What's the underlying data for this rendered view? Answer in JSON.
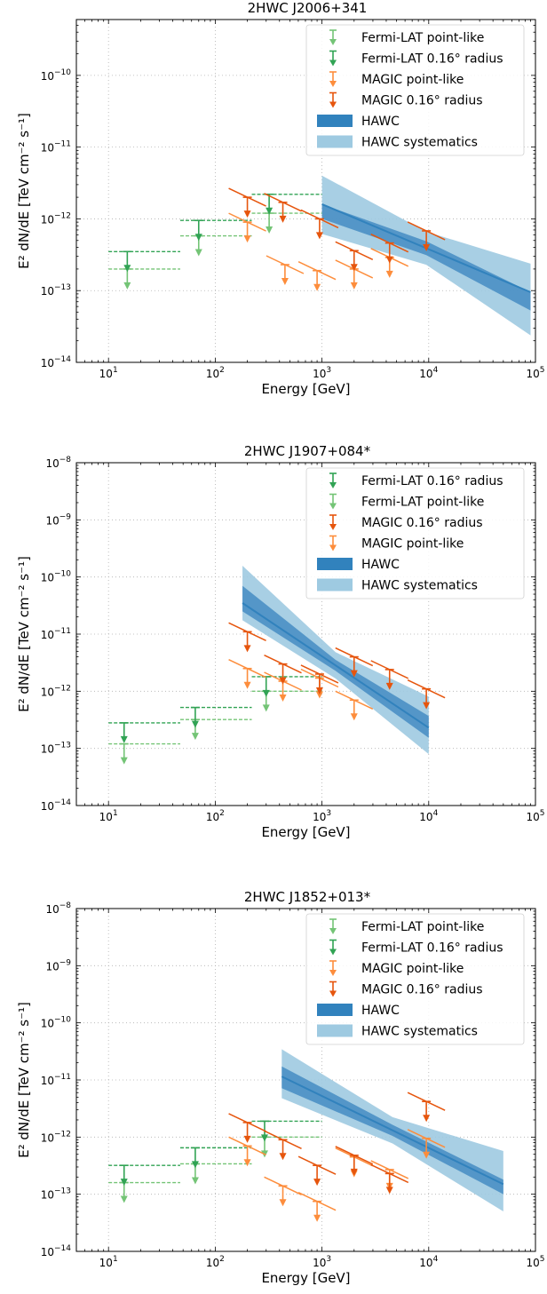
{
  "colors": {
    "fermi_point": "#74c476",
    "fermi_radius": "#31a354",
    "magic_point": "#fd8d3c",
    "magic_radius": "#e6550d",
    "hawc": "#3182bd",
    "hawc_band": "#4a8fc4",
    "hawc_sys": "#9ecae1"
  },
  "chart_data": [
    {
      "type": "line",
      "title": "2HWC J2006+341",
      "xlabel": "Energy [GeV]",
      "ylabel": "E² dN/dE [TeV cm⁻² s⁻¹]",
      "xscale": "log",
      "yscale": "log",
      "xlim": [
        5,
        100000
      ],
      "ylim": [
        1e-14,
        6e-10
      ],
      "xticks": [
        "10^1",
        "10^2",
        "10^3",
        "10^4",
        "10^5"
      ],
      "yticks": [
        "10^-14",
        "10^-13",
        "10^-12",
        "10^-11",
        "10^-10"
      ],
      "grid": true,
      "legend_loc": "top-right",
      "legend": [
        "Fermi-LAT point-like",
        "Fermi-LAT 0.16° radius",
        "MAGIC point-like",
        "MAGIC 0.16° radius",
        "HAWC",
        "HAWC systematics"
      ],
      "fermi_point": [
        {
          "x": 15,
          "x0": 10,
          "x1": 47,
          "y": 2e-13
        },
        {
          "x": 70,
          "x0": 47,
          "x1": 220,
          "y": 5.8e-13
        },
        {
          "x": 320,
          "x0": 220,
          "x1": 1000,
          "y": 1.2e-12
        }
      ],
      "fermi_radius": [
        {
          "x": 15,
          "x0": 10,
          "x1": 47,
          "y": 3.5e-13
        },
        {
          "x": 70,
          "x0": 47,
          "x1": 220,
          "y": 9.5e-13
        },
        {
          "x": 320,
          "x0": 220,
          "x1": 1000,
          "y": 2.2e-12
        }
      ],
      "magic_point": [
        {
          "x": 200,
          "y": 9e-13
        },
        {
          "x": 450,
          "y": 2.3e-13
        },
        {
          "x": 900,
          "y": 1.9e-13
        },
        {
          "x": 2000,
          "y": 2e-13
        },
        {
          "x": 4300,
          "y": 2.9e-13
        }
      ],
      "magic_radius": [
        {
          "x": 200,
          "y": 2e-12
        },
        {
          "x": 430,
          "y": 1.7e-12
        },
        {
          "x": 950,
          "y": 1e-12
        },
        {
          "x": 2000,
          "y": 3.6e-13
        },
        {
          "x": 4300,
          "y": 4.6e-13
        },
        {
          "x": 9500,
          "y": 6.8e-13
        }
      ],
      "hawc": {
        "e0": 1000,
        "e1": 90000,
        "f0": 1.6e-12,
        "f1": 9.5e-14,
        "stat": [
          [
            1.0,
            1.0
          ],
          [
            1.6,
            1.8
          ]
        ],
        "sys": [
          [
            2.5,
            2.5
          ],
          [
            2.6,
            4.0
          ]
        ]
      }
    },
    {
      "type": "line",
      "title": "2HWC J1907+084*",
      "xlabel": "Energy [GeV]",
      "ylabel": "E² dN/dE [TeV cm⁻² s⁻¹]",
      "xscale": "log",
      "yscale": "log",
      "xlim": [
        5,
        100000
      ],
      "ylim": [
        1e-14,
        1e-08
      ],
      "xticks": [
        "10^1",
        "10^2",
        "10^3",
        "10^4",
        "10^5"
      ],
      "yticks": [
        "10^-14",
        "10^-13",
        "10^-12",
        "10^-11",
        "10^-10",
        "10^-9",
        "10^-8"
      ],
      "grid": true,
      "legend_loc": "top-right",
      "legend": [
        "Fermi-LAT 0.16° radius",
        "Fermi-LAT point-like",
        "MAGIC 0.16° radius",
        "MAGIC point-like",
        "HAWC",
        "HAWC systematics"
      ],
      "fermi_point": [
        {
          "x": 14,
          "x0": 10,
          "x1": 47,
          "y": 1.2e-13
        },
        {
          "x": 65,
          "x0": 47,
          "x1": 220,
          "y": 3.2e-13
        },
        {
          "x": 300,
          "x0": 220,
          "x1": 1000,
          "y": 1e-12
        }
      ],
      "fermi_radius": [
        {
          "x": 14,
          "x0": 10,
          "x1": 47,
          "y": 2.8e-13
        },
        {
          "x": 65,
          "x0": 47,
          "x1": 220,
          "y": 5.2e-13
        },
        {
          "x": 300,
          "x0": 220,
          "x1": 1000,
          "y": 1.8e-12
        }
      ],
      "magic_point": [
        {
          "x": 200,
          "y": 2.5e-12
        },
        {
          "x": 430,
          "y": 1.5e-12
        },
        {
          "x": 950,
          "y": 1.7e-12
        },
        {
          "x": 2000,
          "y": 7e-13
        }
      ],
      "magic_radius": [
        {
          "x": 200,
          "y": 1.1e-11
        },
        {
          "x": 430,
          "y": 3e-12
        },
        {
          "x": 950,
          "y": 2e-12
        },
        {
          "x": 2000,
          "y": 4e-12
        },
        {
          "x": 4300,
          "y": 2.4e-12
        },
        {
          "x": 9500,
          "y": 1.1e-12
        }
      ],
      "hawc": {
        "e0": 180,
        "e1": 10000,
        "f0": 3.5e-11,
        "f1": 2.3e-13,
        "stat": [
          [
            2.0,
            1.6
          ],
          [
            1.4,
            1.5
          ]
        ],
        "sys": [
          [
            4.5,
            3.5
          ],
          [
            2.0,
            2.9
          ]
        ]
      }
    },
    {
      "type": "line",
      "title": "2HWC J1852+013*",
      "xlabel": "Energy [GeV]",
      "ylabel": "E² dN/dE [TeV cm⁻² s⁻¹]",
      "xscale": "log",
      "yscale": "log",
      "xlim": [
        5,
        100000
      ],
      "ylim": [
        1e-14,
        1e-08
      ],
      "xticks": [
        "10^1",
        "10^2",
        "10^3",
        "10^4",
        "10^5"
      ],
      "yticks": [
        "10^-14",
        "10^-13",
        "10^-12",
        "10^-11",
        "10^-10",
        "10^-9",
        "10^-8"
      ],
      "grid": true,
      "legend_loc": "top-right",
      "legend": [
        "Fermi-LAT point-like",
        "Fermi-LAT 0.16° radius",
        "MAGIC point-like",
        "MAGIC 0.16° radius",
        "HAWC",
        "HAWC systematics"
      ],
      "fermi_point": [
        {
          "x": 14,
          "x0": 10,
          "x1": 47,
          "y": 1.6e-13
        },
        {
          "x": 65,
          "x0": 47,
          "x1": 220,
          "y": 3.4e-13
        },
        {
          "x": 290,
          "x0": 220,
          "x1": 1000,
          "y": 1e-12
        }
      ],
      "fermi_radius": [
        {
          "x": 14,
          "x0": 10,
          "x1": 47,
          "y": 3.2e-13
        },
        {
          "x": 65,
          "x0": 47,
          "x1": 220,
          "y": 6.5e-13
        },
        {
          "x": 290,
          "x0": 220,
          "x1": 1000,
          "y": 1.9e-12
        }
      ],
      "magic_point": [
        {
          "x": 200,
          "y": 7e-13
        },
        {
          "x": 430,
          "y": 1.4e-13
        },
        {
          "x": 900,
          "y": 7.5e-14
        },
        {
          "x": 2000,
          "y": 4.5e-13
        },
        {
          "x": 4300,
          "y": 2.7e-13
        },
        {
          "x": 9500,
          "y": 9.5e-13
        }
      ],
      "magic_radius": [
        {
          "x": 200,
          "y": 1.8e-12
        },
        {
          "x": 430,
          "y": 9e-13
        },
        {
          "x": 900,
          "y": 3.2e-13
        },
        {
          "x": 2000,
          "y": 4.8e-13
        },
        {
          "x": 4300,
          "y": 2.3e-13
        },
        {
          "x": 9500,
          "y": 4.2e-12
        }
      ],
      "hawc": {
        "e0": 420,
        "e1": 50000,
        "f0": 1.15e-11,
        "f1": 1.5e-13,
        "stat": [
          [
            1.5,
            1.2
          ],
          [
            1.6,
            1.5
          ]
        ],
        "sys": [
          [
            3.0,
            3.8
          ],
          [
            2.4,
            3.0
          ]
        ]
      }
    }
  ]
}
